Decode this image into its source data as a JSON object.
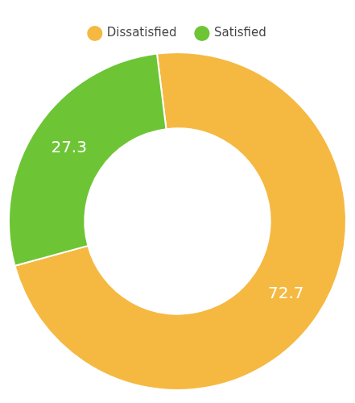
{
  "chart_data": {
    "type": "doughnut",
    "categories": [
      "Dissatisfied",
      "Satisfied"
    ],
    "values": [
      72.7,
      27.3
    ],
    "colors": [
      "#F5B942",
      "#6DC535"
    ],
    "data_labels": true,
    "legend": "top"
  }
}
